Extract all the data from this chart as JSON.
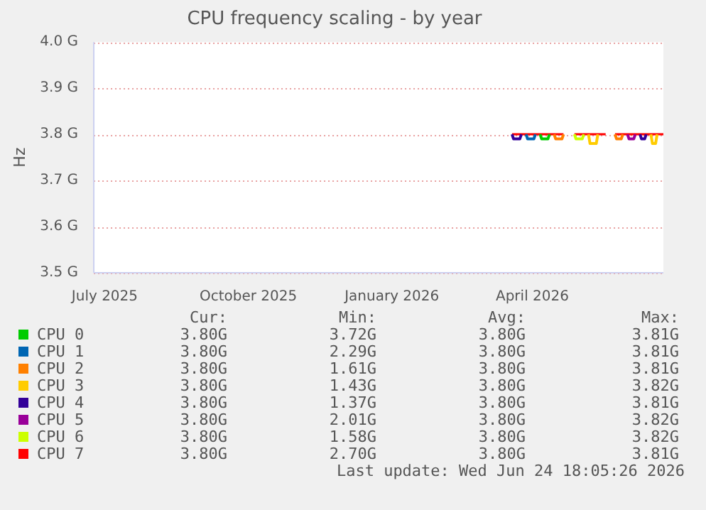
{
  "chart_data": {
    "type": "line",
    "title": "CPU frequency scaling - by year",
    "ylabel": "Hz",
    "x": [
      "2026-03-19",
      "2026-04-21",
      "2026-04-24",
      "2026-04-28",
      "2026-05-18",
      "2026-05-21",
      "2026-05-24",
      "2026-06-24"
    ],
    "series": [
      {
        "name": "CPU 0",
        "color": "#00cc00",
        "x": [
          "2026-04-06",
          "2026-04-07",
          "2026-04-11",
          "2026-04-12"
        ],
        "values": [
          3.8,
          3.79,
          3.79,
          3.8
        ]
      },
      {
        "name": "CPU 1",
        "color": "#0066b3",
        "x": [
          "2026-03-28",
          "2026-03-29",
          "2026-04-02",
          "2026-04-03"
        ],
        "values": [
          3.8,
          3.79,
          3.79,
          3.8
        ]
      },
      {
        "name": "CPU 2",
        "color": "#ff8000",
        "x": [
          "2026-04-15",
          "2026-04-16",
          "2026-04-20",
          "2026-04-21",
          "2026-05-20",
          "2026-05-24",
          "2026-05-25",
          "2026-05-28",
          "2026-05-29"
        ],
        "values": [
          3.8,
          3.79,
          3.79,
          3.8,
          null,
          3.8,
          3.79,
          3.79,
          3.8
        ]
      },
      {
        "name": "CPU 3",
        "color": "#ffcc00",
        "x": [
          "2026-05-07",
          "2026-05-08",
          "2026-05-12",
          "2026-05-13",
          "2026-05-20",
          "2026-06-16",
          "2026-06-17",
          "2026-06-19",
          "2026-06-20"
        ],
        "values": [
          3.8,
          3.78,
          3.78,
          3.8,
          null,
          3.8,
          3.78,
          3.78,
          3.8
        ]
      },
      {
        "name": "CPU 4",
        "color": "#330099",
        "x": [
          "2026-03-19",
          "2026-03-20",
          "2026-03-24",
          "2026-03-25",
          "2026-05-01",
          "2026-06-09",
          "2026-06-10",
          "2026-06-12",
          "2026-06-13"
        ],
        "values": [
          3.8,
          3.79,
          3.79,
          3.8,
          null,
          3.8,
          3.79,
          3.79,
          3.8
        ]
      },
      {
        "name": "CPU 5",
        "color": "#990099",
        "x": [
          "2026-06-01",
          "2026-06-02",
          "2026-06-05",
          "2026-06-06"
        ],
        "values": [
          3.8,
          3.79,
          3.79,
          3.8
        ]
      },
      {
        "name": "CPU 6",
        "color": "#ccff00",
        "x": [
          "2026-04-28",
          "2026-04-29",
          "2026-05-03",
          "2026-05-04"
        ],
        "values": [
          3.8,
          3.79,
          3.79,
          3.8
        ]
      },
      {
        "name": "CPU 7",
        "color": "#ff0000",
        "values": [
          3.8,
          3.8,
          null,
          3.8,
          3.8,
          null,
          3.8,
          3.8
        ]
      }
    ],
    "xlim": [
      "2025-06-24",
      "2026-06-24"
    ],
    "xticks": [
      {
        "value": "2025-07",
        "label": "July 2025"
      },
      {
        "value": "2025-10",
        "label": "October 2025"
      },
      {
        "value": "2026-01",
        "label": "January 2026"
      },
      {
        "value": "2026-04",
        "label": "April 2026"
      }
    ],
    "ylim": [
      3.5,
      4.0
    ],
    "yticks": [
      {
        "value": 3.5,
        "label": "3.5 G"
      },
      {
        "value": 3.6,
        "label": "3.6 G"
      },
      {
        "value": 3.7,
        "label": "3.7 G"
      },
      {
        "value": 3.8,
        "label": "3.8 G"
      },
      {
        "value": 3.9,
        "label": "3.9 G"
      },
      {
        "value": 4.0,
        "label": "4.0 G"
      }
    ],
    "grid": "y",
    "legend": "bottom",
    "marker": "none",
    "line_style": "solid",
    "annotations": [
      "Cur:",
      "Min:",
      "Avg:",
      "Max:",
      "3.80G",
      "3.72G",
      "3.80G",
      "3.81G",
      "3.80G",
      "2.29G",
      "3.80G",
      "3.81G",
      "3.80G",
      "1.61G",
      "3.80G",
      "3.81G",
      "3.80G",
      "1.43G",
      "3.80G",
      "3.82G",
      "3.80G",
      "1.37G",
      "3.80G",
      "3.81G",
      "3.80G",
      "2.01G",
      "3.80G",
      "3.82G",
      "3.80G",
      "1.58G",
      "3.80G",
      "3.82G",
      "3.80G",
      "2.70G",
      "3.80G",
      "3.81G",
      "Last update: Wed Jun 24 18:05:26 2026"
    ]
  }
}
